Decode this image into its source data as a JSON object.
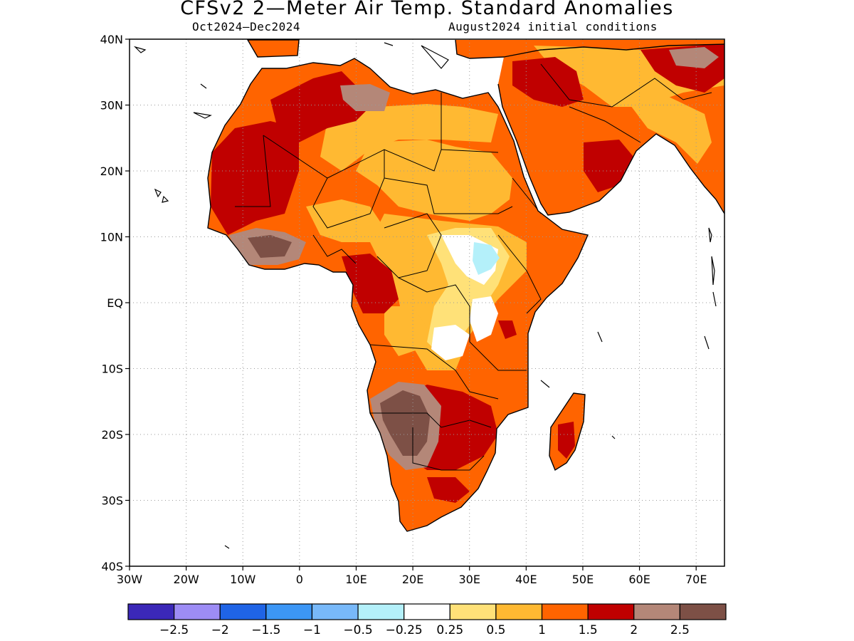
{
  "title": "CFSv2 2—Meter Air Temp. Standard Anomalies",
  "subtitle_left": "Oct2024—Dec2024",
  "subtitle_right": "August2024 initial conditions",
  "y_ticks": [
    {
      "label": "40N",
      "lat": 40
    },
    {
      "label": "30N",
      "lat": 30
    },
    {
      "label": "20N",
      "lat": 20
    },
    {
      "label": "10N",
      "lat": 10
    },
    {
      "label": "EQ",
      "lat": 0
    },
    {
      "label": "10S",
      "lat": -10
    },
    {
      "label": "20S",
      "lat": -20
    },
    {
      "label": "30S",
      "lat": -30
    },
    {
      "label": "40S",
      "lat": -40
    }
  ],
  "x_ticks": [
    {
      "label": "30W",
      "lon": -30
    },
    {
      "label": "20W",
      "lon": -20
    },
    {
      "label": "10W",
      "lon": -10
    },
    {
      "label": "0",
      "lon": 0
    },
    {
      "label": "10E",
      "lon": 10
    },
    {
      "label": "20E",
      "lon": 20
    },
    {
      "label": "30E",
      "lon": 30
    },
    {
      "label": "40E",
      "lon": 40
    },
    {
      "label": "50E",
      "lon": 50
    },
    {
      "label": "60E",
      "lon": 60
    },
    {
      "label": "70E",
      "lon": 70
    }
  ],
  "map_extent": {
    "lon_min": -30,
    "lon_max": 75,
    "lat_min": -40,
    "lat_max": 40
  },
  "colorbar": {
    "colors": [
      "#3b28b8",
      "#9d8cf5",
      "#1f64e6",
      "#3c96f5",
      "#78b9fa",
      "#b4f0fa",
      "#ffffff",
      "#ffe178",
      "#ffb932",
      "#ff6400",
      "#c00000",
      "#b48778",
      "#7d5046"
    ],
    "labels": [
      "−2.5",
      "−2",
      "−1.5",
      "−1",
      "−0.5",
      "−0.25",
      "0.25",
      "0.5",
      "1",
      "1.5",
      "2",
      "2.5"
    ]
  },
  "chart_data": {
    "type": "heatmap",
    "title": "CFSv2 2—Meter Air Temp. Standard Anomalies",
    "period": "Oct2024—Dec2024",
    "initial_conditions": "August2024 initial conditions",
    "x_range_lon": [
      -30,
      75
    ],
    "y_range_lat": [
      -40,
      40
    ],
    "grid": true,
    "units": "standard anomaly",
    "levels": [
      -2.5,
      -2,
      -1.5,
      -1,
      -0.5,
      -0.25,
      0.25,
      0.5,
      1,
      1.5,
      2,
      2.5
    ],
    "colors": [
      "#3b28b8",
      "#9d8cf5",
      "#1f64e6",
      "#3c96f5",
      "#78b9fa",
      "#b4f0fa",
      "#ffffff",
      "#ffe178",
      "#ffb932",
      "#ff6400",
      "#c00000",
      "#b48778",
      "#7d5046"
    ]
  }
}
